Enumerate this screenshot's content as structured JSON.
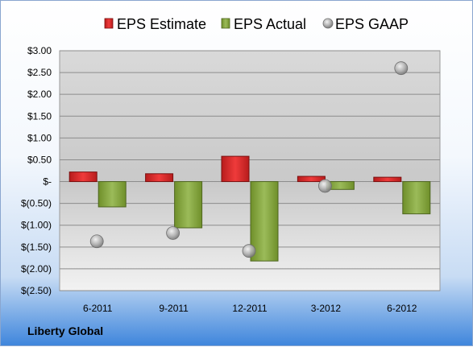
{
  "chart_data": {
    "type": "bar",
    "categories": [
      "6-2011",
      "9-2011",
      "12-2011",
      "3-2012",
      "6-2012"
    ],
    "series": [
      {
        "name": "EPS Estimate",
        "kind": "bar",
        "color": "#d32f2f",
        "values": [
          0.22,
          0.18,
          0.58,
          0.12,
          0.1
        ]
      },
      {
        "name": "EPS Actual",
        "kind": "bar",
        "color": "#8aaa3e",
        "values": [
          -0.58,
          -1.06,
          -1.82,
          -0.18,
          -0.74
        ]
      },
      {
        "name": "EPS GAAP",
        "kind": "scatter",
        "color": "#a6a6a6",
        "values": [
          -1.37,
          -1.18,
          -1.59,
          -0.1,
          2.6
        ]
      }
    ],
    "y_ticks": [
      {
        "value": 3.0,
        "label": "$3.00"
      },
      {
        "value": 2.5,
        "label": "$2.50"
      },
      {
        "value": 2.0,
        "label": "$2.00"
      },
      {
        "value": 1.5,
        "label": "$1.50"
      },
      {
        "value": 1.0,
        "label": "$1.00"
      },
      {
        "value": 0.5,
        "label": "$0.50"
      },
      {
        "value": 0.0,
        "label": "$-"
      },
      {
        "value": -0.5,
        "label": "$(0.50)"
      },
      {
        "value": -1.0,
        "label": "$(1.00)"
      },
      {
        "value": -1.5,
        "label": "$(1.50)"
      },
      {
        "value": -2.0,
        "label": "$(2.00)"
      },
      {
        "value": -2.5,
        "label": "$(2.50)"
      }
    ],
    "ylim": [
      -2.5,
      3.0
    ],
    "grid": true,
    "legend_position": "top"
  },
  "footer": {
    "brand": "Liberty Global"
  }
}
